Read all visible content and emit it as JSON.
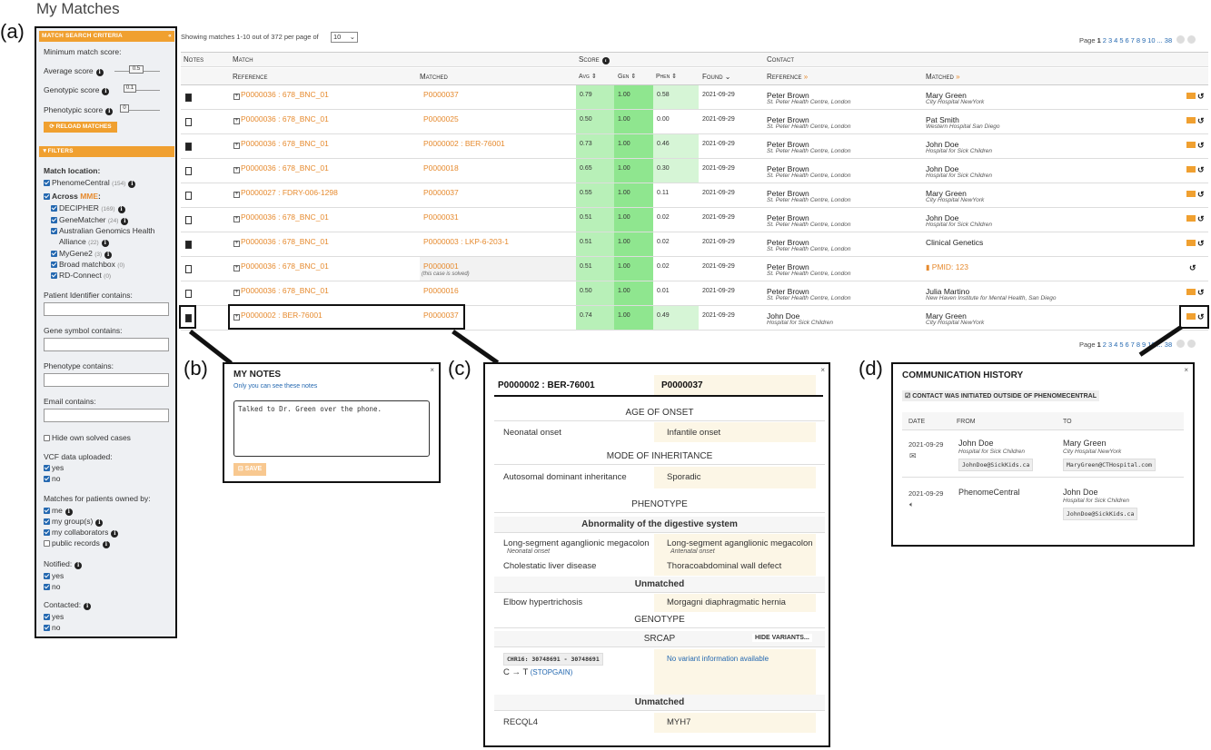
{
  "page": {
    "title": "My Matches"
  },
  "panel_labels": {
    "a": "(a)",
    "b": "(b)",
    "c": "(c)",
    "d": "(d)"
  },
  "sidebar": {
    "criteria_header": "MATCH SEARCH CRITERIA",
    "min_score_label": "Minimum match score:",
    "avg_label": "Average score",
    "avg_value": "0.5",
    "gen_label": "Genotypic score",
    "gen_value": "0.1",
    "phen_label": "Phenotypic score",
    "phen_value": "0",
    "reload_button": "RELOAD MATCHES",
    "filters_header": "FILTERS",
    "match_location": "Match location:",
    "phenomecentral": "PhenomeCentral",
    "phenomecentral_count": "(154)",
    "across": "Across ",
    "mme": "MME",
    "decipher": "DECIPHER",
    "decipher_count": "(169)",
    "genematcher": "GeneMatcher",
    "genematcher_count": "(24)",
    "australian1": "Australian Genomics Health",
    "australian2": "Alliance",
    "australian_count": "(22)",
    "mygene2": "MyGene2",
    "mygene2_count": "(3)",
    "broad": "Broad matchbox",
    "broad_count": "(0)",
    "rdconnect": "RD-Connect",
    "rdconnect_count": "(0)",
    "pid_label": "Patient Identifier contains:",
    "gene_label": "Gene symbol contains:",
    "phenotype_label": "Phenotype contains:",
    "email_label": "Email contains:",
    "hide_solved": "Hide own solved cases",
    "vcf_label": "VCF data uploaded:",
    "yes": "yes",
    "no": "no",
    "owned_label": "Matches for patients owned by:",
    "me": "me",
    "groups": "my group(s)",
    "collaborators": "my collaborators",
    "public": "public records",
    "notified_label": "Notified:",
    "contacted_label": "Contacted:"
  },
  "table": {
    "showing": "Showing matches 1-10 out of 372 per page of",
    "per_page": "10",
    "page_label": "Page",
    "pages": [
      "1",
      "2",
      "3",
      "4",
      "5",
      "6",
      "7",
      "8",
      "9",
      "10",
      "...",
      "38"
    ],
    "h_notes": "Notes",
    "h_match": "Match",
    "h_score": "Score",
    "h_contact": "Contact",
    "h_reference": "Reference",
    "h_matched": "Matched",
    "h_avg": "Avg",
    "h_gen": "Gen",
    "h_phen": "Phen",
    "h_found": "Found",
    "h_cref": "Reference",
    "h_cmatched": "Matched",
    "rows": [
      {
        "ref": "P0000036 : 678_BNC_01",
        "matched": "P0000037",
        "sub": "",
        "avg": "0.79",
        "gen": "1.00",
        "phen": "0.58",
        "found": "2021-09-29",
        "rname": "Peter Brown",
        "rinst": "St. Peter Health Centre, London",
        "mname": "Mary Green",
        "minst": "City Hospital NewYork"
      },
      {
        "ref": "P0000036 : 678_BNC_01",
        "matched": "P0000025",
        "sub": "",
        "avg": "0.50",
        "gen": "1.00",
        "phen": "0.00",
        "found": "2021-09-29",
        "rname": "Peter Brown",
        "rinst": "St. Peter Health Centre, London",
        "mname": "Pat Smith",
        "minst": "Western Hospital San Diego"
      },
      {
        "ref": "P0000036 : 678_BNC_01",
        "matched": "P0000002 : BER-76001",
        "sub": "",
        "avg": "0.73",
        "gen": "1.00",
        "phen": "0.46",
        "found": "2021-09-29",
        "rname": "Peter Brown",
        "rinst": "St. Peter Health Centre, London",
        "mname": "John Doe",
        "minst": "Hospital for Sick Children"
      },
      {
        "ref": "P0000036 : 678_BNC_01",
        "matched": "P0000018",
        "sub": "",
        "avg": "0.65",
        "gen": "1.00",
        "phen": "0.30",
        "found": "2021-09-29",
        "rname": "Peter Brown",
        "rinst": "St. Peter Health Centre, London",
        "mname": "John Doe",
        "minst": "Hospital for Sick Children"
      },
      {
        "ref": "P0000027 : FDRY-006-1298",
        "matched": "P0000037",
        "sub": "",
        "avg": "0.55",
        "gen": "1.00",
        "phen": "0.11",
        "found": "2021-09-29",
        "rname": "Peter Brown",
        "rinst": "St. Peter Health Centre, London",
        "mname": "Mary Green",
        "minst": "City Hospital NewYork"
      },
      {
        "ref": "P0000036 : 678_BNC_01",
        "matched": "P0000031",
        "sub": "",
        "avg": "0.51",
        "gen": "1.00",
        "phen": "0.02",
        "found": "2021-09-29",
        "rname": "Peter Brown",
        "rinst": "St. Peter Health Centre, London",
        "mname": "John Doe",
        "minst": "Hospital for Sick Children"
      },
      {
        "ref": "P0000036 : 678_BNC_01",
        "matched": "P0000003 : LKP-6-203-1",
        "sub": "",
        "avg": "0.51",
        "gen": "1.00",
        "phen": "0.02",
        "found": "2021-09-29",
        "rname": "Peter Brown",
        "rinst": "St. Peter Health Centre, London",
        "mname": "Clinical Genetics",
        "minst": ""
      },
      {
        "ref": "P0000036 : 678_BNC_01",
        "matched": "P0000001",
        "sub": "(this case is solved)",
        "avg": "0.51",
        "gen": "1.00",
        "phen": "0.02",
        "found": "2021-09-29",
        "rname": "Peter Brown",
        "rinst": "St. Peter Health Centre, London",
        "mname": "PMID: 123",
        "minst": ""
      },
      {
        "ref": "P0000036 : 678_BNC_01",
        "matched": "P0000016",
        "sub": "",
        "avg": "0.50",
        "gen": "1.00",
        "phen": "0.01",
        "found": "2021-09-29",
        "rname": "Peter Brown",
        "rinst": "St. Peter Health Centre, London",
        "mname": "Julia Martino",
        "minst": "New Haven Institute for Mental Health, San Diego"
      },
      {
        "ref": "P0000002 : BER-76001",
        "matched": "P0000037",
        "sub": "",
        "avg": "0.74",
        "gen": "1.00",
        "phen": "0.49",
        "found": "2021-09-29",
        "rname": "John Doe",
        "rinst": "Hospital for Sick Children",
        "mname": "Mary Green",
        "minst": "City Hospital NewYork"
      }
    ]
  },
  "notes": {
    "title": "MY NOTES",
    "subtitle": "Only you can see these notes",
    "text": "Talked to Dr. Green over the phone.",
    "save": "SAVE",
    "close": "×"
  },
  "compare": {
    "ref": "P0000002 : BER-76001",
    "matched": "P0000037",
    "close": "×",
    "age_onset": "AGE OF ONSET",
    "age_ref": "Neonatal onset",
    "age_match": "Infantile onset",
    "moi": "MODE OF INHERITANCE",
    "moi_ref": "Autosomal dominant inheritance",
    "moi_match": "Sporadic",
    "phenotype": "PHENOTYPE",
    "digestive": "Abnormality of the digestive system",
    "p1_ref": "Long-segment aganglionic megacolon",
    "p1_ref_sub": "Neonatal onset",
    "p1_match": "Long-segment aganglionic megacolon",
    "p1_match_sub": "Antenatal onset",
    "p2_ref": "Cholestatic liver disease",
    "p2_match": "Thoracoabdominal wall defect",
    "unmatched": "Unmatched",
    "p3_ref": "Elbow hypertrichosis",
    "p3_match": "Morgagni diaphragmatic hernia",
    "genotype": "GENOTYPE",
    "gene": "SRCAP",
    "hide_variants": "HIDE VARIANTS...",
    "variant_pos": "CHR16: 30748691 - 30748691",
    "variant_change": "C → T",
    "variant_effect": "(STOPGAIN)",
    "no_variant": "No variant information available",
    "g_ref": "RECQL4",
    "g_match": "MYH7"
  },
  "comm": {
    "title": "COMMUNICATION HISTORY",
    "close": "×",
    "outside": "CONTACT WAS INITIATED OUTSIDE OF PHENOMECENTRAL",
    "h_date": "DATE",
    "h_from": "FROM",
    "h_to": "TO",
    "e1_date": "2021-09-29",
    "e1_from": "John Doe",
    "e1_from_inst": "Hospital for Sick Children",
    "e1_from_email": "JohnDoe@SickKids.ca",
    "e1_to": "Mary Green",
    "e1_to_inst": "City Hospital NewYork",
    "e1_to_email": "MaryGreen@CTHospital.com",
    "e2_date": "2021-09-29",
    "e2_from": "PhenomeCentral",
    "e2_to": "John Doe",
    "e2_to_inst": "Hospital for Sick Children",
    "e2_to_email": "JohnDoe@SickKids.ca"
  },
  "colors": {
    "accent": "#f0a030",
    "link": "#e68a2e",
    "score_green": "#b8f0b8",
    "score_green_dark": "#8fe68f",
    "blue": "#2468b0"
  }
}
